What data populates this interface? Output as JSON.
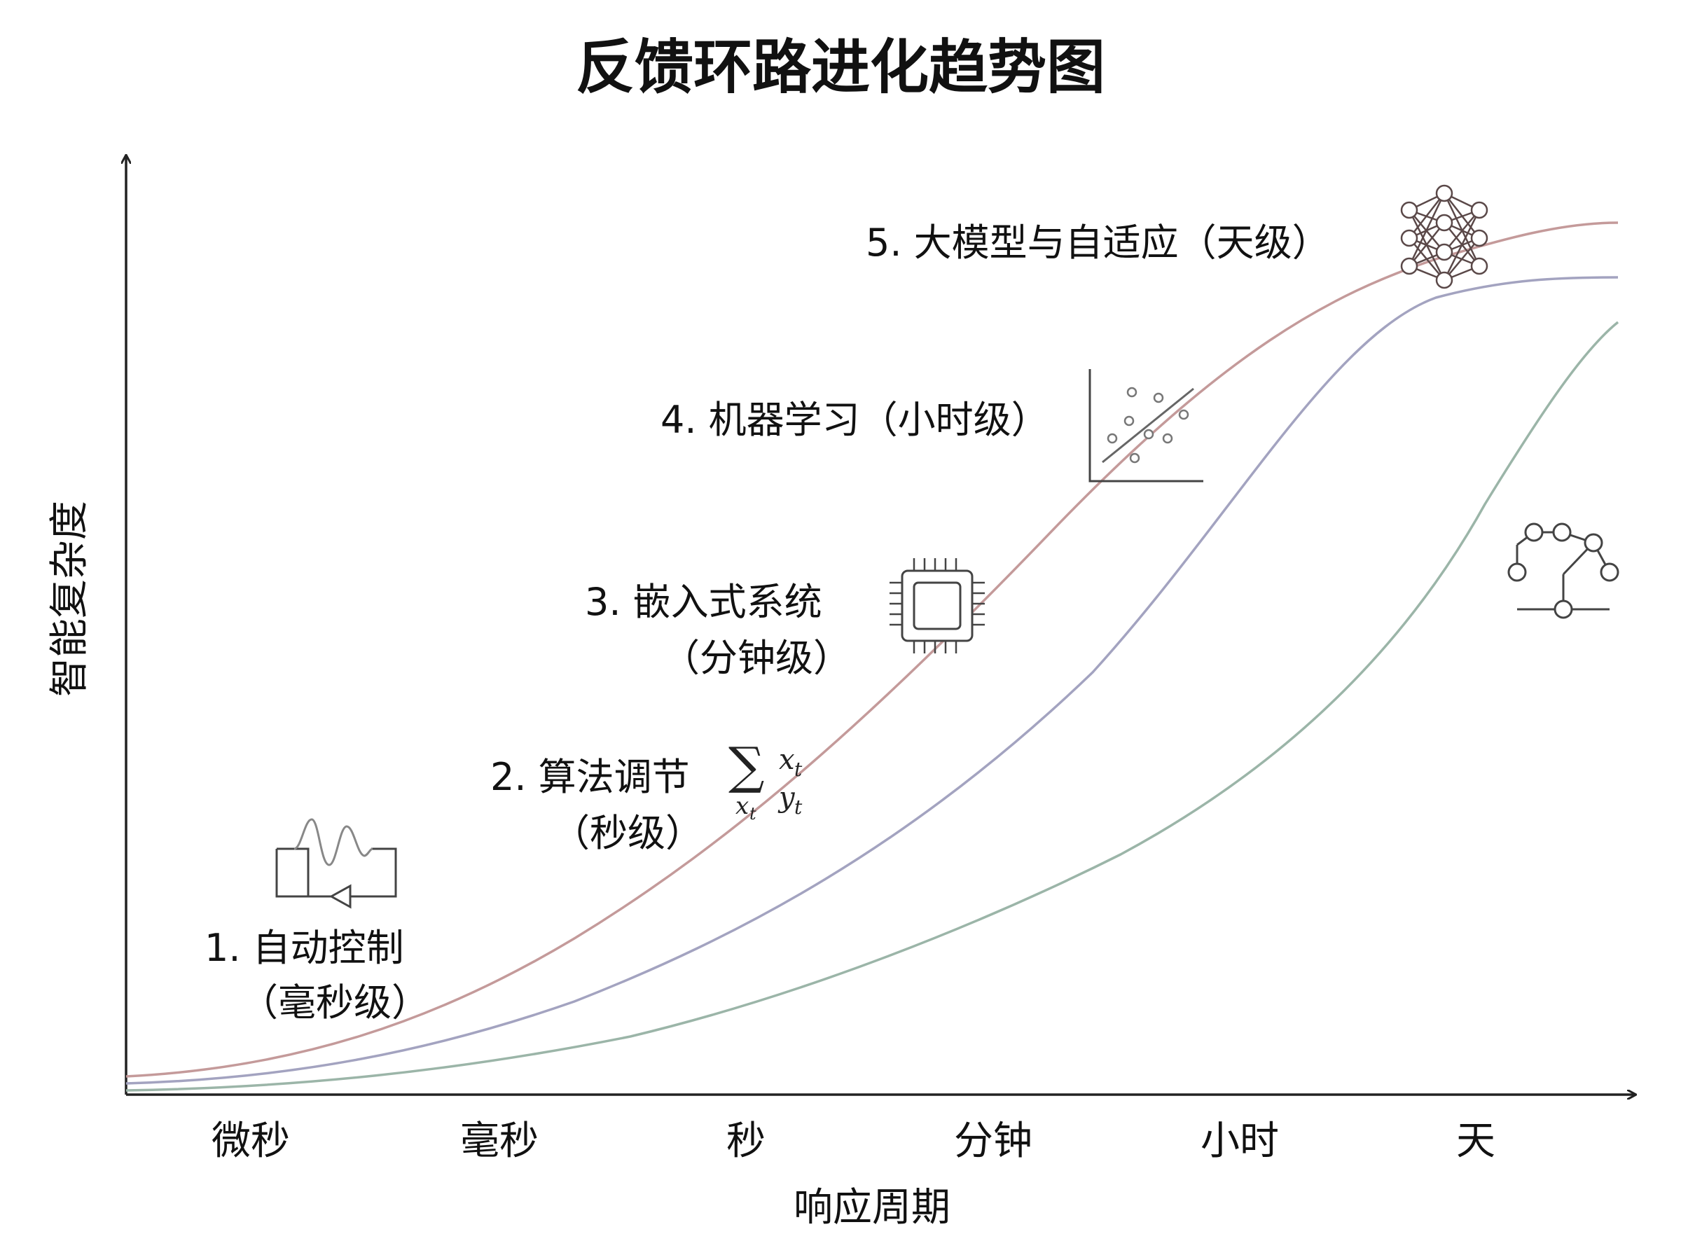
{
  "title": "反馈环路进化趋势图",
  "axes": {
    "x_label": "响应周期",
    "y_label": "智能复杂度",
    "x_ticks": [
      "微秒",
      "毫秒",
      "秒",
      "分钟",
      "小时",
      "天"
    ]
  },
  "stages": [
    {
      "line1": "1. 自动控制",
      "line2": "（毫秒级）",
      "icon": "feedback-loop-icon"
    },
    {
      "line1": "2. 算法调节",
      "line2": "（秒级）",
      "icon": "summation-formula-icon"
    },
    {
      "line1": "3. 嵌入式系统",
      "line2": "（分钟级）",
      "icon": "microchip-icon"
    },
    {
      "line1": "4. 机器学习（小时级）",
      "icon": "scatter-regression-icon"
    },
    {
      "line1": "5. 大模型与自适应（天级）",
      "icon": "neural-network-icon"
    }
  ],
  "extra_icon": "tree-graph-icon",
  "formula": {
    "sum_top": "x",
    "sub_top": "t",
    "sum_mid": "y",
    "sub_mid": "t",
    "sum_bottom": "x",
    "sub_bottom": "t"
  },
  "curves": [
    {
      "color": "#c49a9a"
    },
    {
      "color": "#a3a3c0"
    },
    {
      "color": "#9bb5a8"
    }
  ]
}
